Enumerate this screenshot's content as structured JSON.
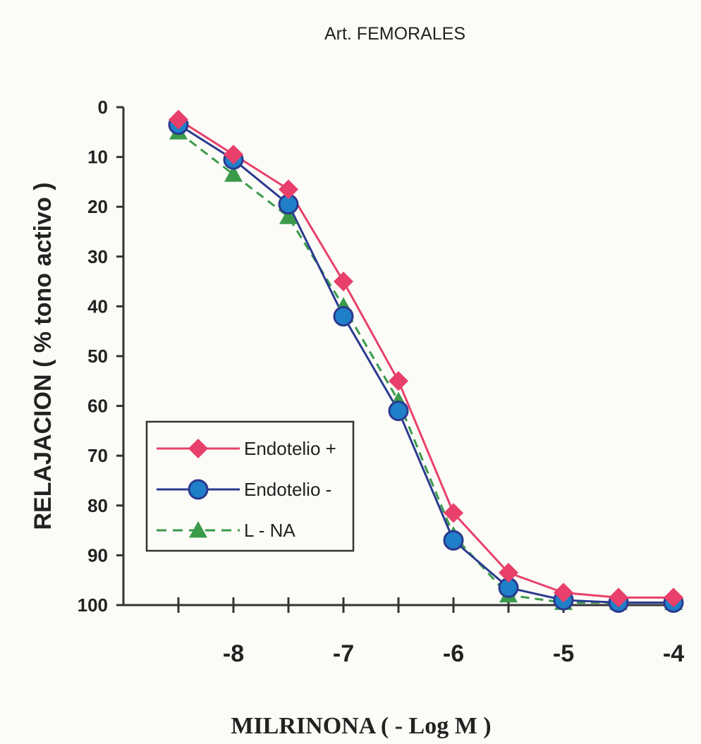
{
  "chart_data": {
    "type": "line",
    "title": "Art. FEMORALES",
    "xlabel": "MILRINONA ( - Log M )",
    "ylabel": "RELAJACION ( %  tono activo )",
    "x": [
      -8.5,
      -8,
      -7.5,
      -7,
      -6.5,
      -6,
      -5.5,
      -5,
      -4.5,
      -4
    ],
    "xlim": [
      -9,
      -4
    ],
    "ylim": [
      0,
      100
    ],
    "y_inverted": true,
    "x_tick_labels": [
      {
        "value": -8,
        "label": "-8"
      },
      {
        "value": -7,
        "label": "-7"
      },
      {
        "value": -6,
        "label": "-6"
      },
      {
        "value": -5,
        "label": "-5"
      },
      {
        "value": -4,
        "label": "-4"
      }
    ],
    "y_tick_labels": [
      {
        "value": 0,
        "label": "0"
      },
      {
        "value": 10,
        "label": "10"
      },
      {
        "value": 20,
        "label": "20"
      },
      {
        "value": 30,
        "label": "30"
      },
      {
        "value": 40,
        "label": "40"
      },
      {
        "value": 50,
        "label": "50"
      },
      {
        "value": 60,
        "label": "60"
      },
      {
        "value": 70,
        "label": "70"
      },
      {
        "value": 80,
        "label": "80"
      },
      {
        "value": 90,
        "label": "90"
      },
      {
        "value": 100,
        "label": "100"
      }
    ],
    "grid": false,
    "legend_position": "bottom-left",
    "series": [
      {
        "name": "Endotelio +",
        "marker": "diamond",
        "color": "#e8406a",
        "line": "solid",
        "values": [
          2.5,
          9.5,
          16.5,
          35,
          55,
          81.5,
          93.5,
          97.5,
          98.5,
          98.5
        ]
      },
      {
        "name": "Endotelio -",
        "marker": "circle",
        "color": "#2b3a8f",
        "marker_fill": "#1f7fc9",
        "line": "solid",
        "values": [
          3.5,
          10.5,
          19.5,
          42,
          61,
          87,
          96.5,
          99,
          99.5,
          99.5
        ]
      },
      {
        "name": "L - NA",
        "marker": "triangle",
        "color": "#3a9a4a",
        "line": "dashed",
        "values": [
          5,
          13.5,
          22,
          40,
          59,
          86,
          98,
          99.5,
          99.5,
          99.5
        ]
      }
    ]
  }
}
